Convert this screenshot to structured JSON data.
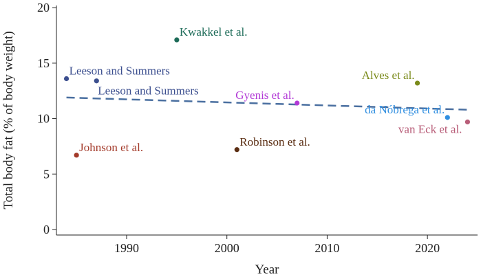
{
  "chart_data": {
    "type": "scatter",
    "xlabel": "Year",
    "ylabel": "Total body fat (% of body weight)",
    "xlim": [
      1983,
      2025
    ],
    "ylim": [
      -0.5,
      20.2
    ],
    "xticks": [
      1990,
      2000,
      2010,
      2020
    ],
    "yticks": [
      0,
      5,
      10,
      15,
      20
    ],
    "grid": false,
    "points": [
      {
        "label": "Leeson and Summers",
        "x": 1984,
        "y": 13.6,
        "color": "#3c4f8f",
        "label_pos": "right-above"
      },
      {
        "label": "Johnson et al.",
        "x": 1985,
        "y": 6.7,
        "color": "#a33a2a",
        "label_pos": "right-above"
      },
      {
        "label": "Leeson and Summers",
        "x": 1987,
        "y": 13.4,
        "color": "#3c4f8f",
        "label_pos": "right-below"
      },
      {
        "label": "Kwakkel et al.",
        "x": 1995,
        "y": 17.1,
        "color": "#1d6b58",
        "label_pos": "right-above"
      },
      {
        "label": "Robinson et al.",
        "x": 2001,
        "y": 7.2,
        "color": "#5a2d12",
        "label_pos": "right-above"
      },
      {
        "label": "Gyenis et al.",
        "x": 2007,
        "y": 11.4,
        "color": "#b23ad6",
        "label_pos": "left-above"
      },
      {
        "label": "Alves et al.",
        "x": 2019,
        "y": 13.2,
        "color": "#7a8a1a",
        "label_pos": "left-above"
      },
      {
        "label": "da Nóbrega et al.",
        "x": 2022,
        "y": 10.1,
        "color": "#2f8ee0",
        "label_pos": "left-above"
      },
      {
        "label": "van Eck et al.",
        "x": 2024,
        "y": 9.7,
        "color": "#b85d78",
        "label_pos": "left-below"
      }
    ],
    "trend_line": {
      "x": [
        1984,
        2024
      ],
      "y": [
        11.9,
        10.8
      ],
      "style": "dashed",
      "color": "#4a6fa0"
    }
  }
}
